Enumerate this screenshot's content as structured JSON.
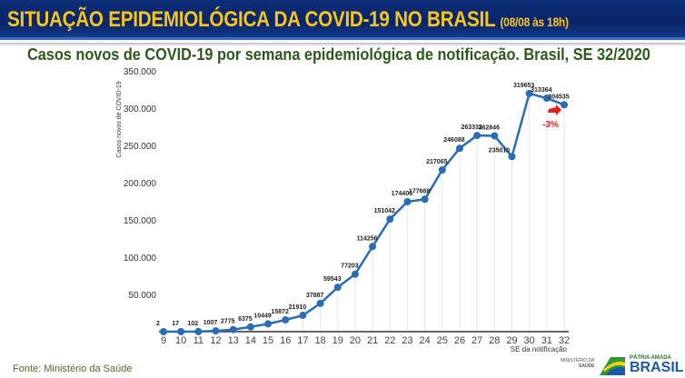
{
  "header": {
    "title": "SITUAÇÃO EPIDEMIOLÓGICA DA COVID-19 NO BRASIL",
    "date": "(08/08 às 18h)"
  },
  "footer": {
    "source": "Fonte: Ministério da Saúde",
    "ministry_line1": "MINISTÉRIO DA",
    "ministry_line2": "SAÚDE",
    "brand_line1": "PÁTRIA AMADA",
    "brand_line2": "BRASIL"
  },
  "chart_data": {
    "type": "line",
    "title": "Casos novos de COVID-19 por semana epidemiológica de notificação. Brasil, SE 32/2020",
    "xlabel": "SE da notificação",
    "ylabel": "Casos novos de COVID-19",
    "x": [
      9,
      10,
      11,
      12,
      13,
      14,
      15,
      16,
      17,
      18,
      19,
      20,
      21,
      22,
      23,
      24,
      25,
      26,
      27,
      28,
      29,
      30,
      31,
      32
    ],
    "values": [
      2,
      17,
      102,
      1007,
      2775,
      6375,
      10449,
      15872,
      21910,
      37887,
      59543,
      77203,
      114256,
      151042,
      174406,
      177668,
      217065,
      246088,
      263333,
      262846,
      235010,
      319653,
      313364,
      304535
    ],
    "ylim": [
      0,
      350000
    ],
    "yticks": [
      50000,
      100000,
      150000,
      200000,
      250000,
      300000,
      350000
    ],
    "ytick_labels": [
      "50.000",
      "100.000",
      "150.000",
      "200.000",
      "250.000",
      "300.000",
      "350.000"
    ],
    "annotation": "-3%",
    "color": "#2a6db5",
    "annotation_color": "#e0201a"
  }
}
